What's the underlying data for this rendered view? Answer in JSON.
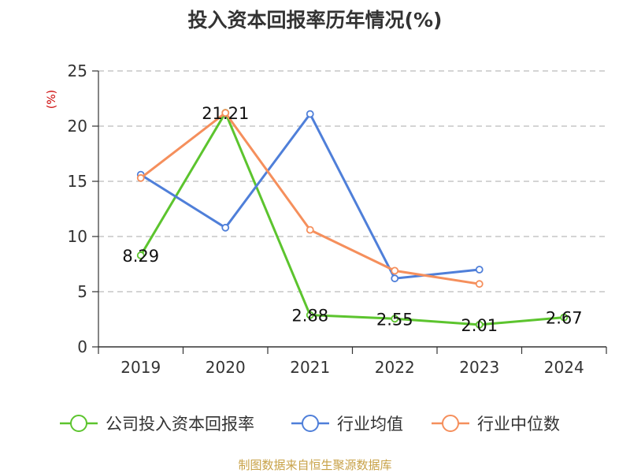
{
  "chart_data": {
    "type": "line",
    "title": "投入资本回报率历年情况(%)",
    "ylabel": "(%)",
    "xlabel": "",
    "categories": [
      "2019",
      "2020",
      "2021",
      "2022",
      "2023",
      "2024"
    ],
    "ylim": [
      0,
      25
    ],
    "yticks": [
      0,
      5,
      10,
      15,
      20,
      25
    ],
    "grid": true,
    "legend_position": "bottom",
    "series": [
      {
        "name": "公司投入资本回报率",
        "color": "#5cc42e",
        "values": [
          8.29,
          21.21,
          2.88,
          2.55,
          2.01,
          2.67
        ],
        "show_labels": true
      },
      {
        "name": "行业均值",
        "color": "#4f7fd9",
        "values": [
          15.6,
          10.8,
          21.1,
          6.2,
          7.0,
          null
        ],
        "show_labels": false
      },
      {
        "name": "行业中位数",
        "color": "#f58f5c",
        "values": [
          15.3,
          21.2,
          10.6,
          6.9,
          5.7,
          null
        ],
        "show_labels": false
      }
    ],
    "data_labels": [
      "8.29",
      "21.21",
      "2.88",
      "2.55",
      "2.01",
      "2.67"
    ]
  },
  "source": "制图数据来自恒生聚源数据库"
}
